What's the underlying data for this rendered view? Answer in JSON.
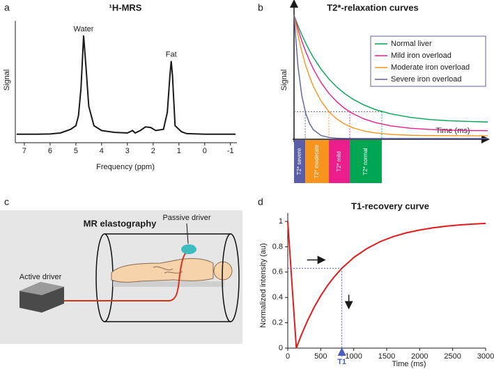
{
  "chart_data": [
    {
      "type": "line",
      "panel": "a",
      "title": "¹H-MRS",
      "x_label": "Frequency (ppm)",
      "y_label": "Signal",
      "xlim": [
        7.35,
        -1.25
      ],
      "ylim": [
        0,
        100
      ],
      "xticks": [
        7,
        6,
        5,
        4,
        3,
        2,
        1,
        0,
        -1
      ],
      "color": "#1a1a1a",
      "x": [
        7.3,
        6.5,
        6.0,
        5.6,
        5.4,
        5.2,
        5.0,
        4.9,
        4.8,
        4.7,
        4.6,
        4.5,
        4.3,
        4.0,
        3.5,
        3.0,
        2.8,
        2.7,
        2.5,
        2.3,
        2.1,
        1.9,
        1.6,
        1.45,
        1.35,
        1.3,
        1.25,
        1.15,
        1.0,
        0.9,
        0.7,
        0.0,
        -1.0,
        -1.2
      ],
      "values": [
        7,
        7,
        7.2,
        8,
        9.5,
        11,
        14,
        22,
        45,
        88,
        60,
        30,
        14,
        10,
        8.5,
        8,
        10,
        8,
        10,
        13,
        12.5,
        10,
        11,
        25,
        55,
        67,
        55,
        14,
        11,
        9,
        7.5,
        7,
        7,
        7
      ],
      "annotations": [
        {
          "text": "Water",
          "x": 4.7,
          "y": 88
        },
        {
          "text": "Fat",
          "x": 1.3,
          "y": 67
        }
      ]
    },
    {
      "type": "line",
      "panel": "b",
      "title": "T2*-relaxation curves",
      "x_label": "Time (ms)",
      "y_label": "Signal",
      "xlim": [
        0,
        100
      ],
      "ylim": [
        0,
        100
      ],
      "legend": "upper right",
      "x": [
        0,
        2,
        4,
        6,
        8,
        10,
        14,
        18,
        22,
        26,
        30,
        36,
        42,
        50,
        60,
        70,
        80,
        90,
        100
      ],
      "series": [
        {
          "name": "Normal liver",
          "color": "#00a651",
          "values": [
            90,
            82.6,
            75.9,
            69.8,
            64.3,
            59.3,
            50.8,
            43.7,
            38.0,
            33.3,
            29.4,
            24.9,
            21.5,
            18.4,
            15.9,
            14.3,
            13.4,
            12.9,
            12.5
          ]
        },
        {
          "name": "Mild iron overload",
          "color": "#ec1e8c",
          "values": [
            90,
            80.1,
            71.4,
            63.7,
            57.0,
            50.9,
            41.0,
            33.3,
            27.3,
            22.5,
            18.9,
            14.8,
            12.1,
            9.7,
            8.0,
            7.1,
            6.6,
            6.3,
            6.2
          ]
        },
        {
          "name": "Moderate iron overload",
          "color": "#f7941d",
          "values": [
            90,
            75.6,
            63.8,
            53.7,
            45.4,
            38.3,
            27.6,
            20.0,
            14.8,
            11.1,
            8.5,
            6.0,
            4.6,
            3.5,
            2.9,
            2.7,
            2.6,
            2.5,
            2.5
          ]
        },
        {
          "name": "Severe iron overload",
          "color": "#5b5ea6",
          "values": [
            90,
            53.4,
            31.7,
            19.0,
            11.4,
            6.9,
            2.7,
            1.3,
            0.8,
            0.6,
            0.5,
            0.5,
            0.5,
            0.5,
            0.5,
            0.5,
            0.5,
            0.5,
            0.5
          ]
        }
      ],
      "threshold": 20,
      "bands": [
        {
          "label": "T2* severe",
          "color": "#5b5ea6",
          "from": 0,
          "to": 5.8
        },
        {
          "label": "T2* moderate",
          "color": "#f7941d",
          "from": 5.8,
          "to": 18
        },
        {
          "label": "T2* mild",
          "color": "#ec1e8c",
          "from": 18,
          "to": 28.8
        },
        {
          "label": "T2* normal",
          "color": "#00a651",
          "from": 28.8,
          "to": 45.3
        }
      ]
    },
    {
      "type": "line",
      "panel": "d",
      "title": "T1-recovery curve",
      "x_label": "Time (ms)",
      "y_label": "Normalized intensity (au)",
      "xlim": [
        0,
        3000
      ],
      "ylim": [
        0,
        1
      ],
      "xticks": [
        0,
        500,
        1000,
        1500,
        2000,
        2500,
        3000
      ],
      "yticks": [
        0,
        0.2,
        0.4,
        0.6,
        0.8,
        1
      ],
      "color": "#e41a1c",
      "x": [
        0,
        130,
        200,
        300,
        400,
        500,
        600,
        700,
        820,
        1000,
        1200,
        1400,
        1600,
        1800,
        2000,
        2200,
        2400,
        2600,
        2800,
        3000
      ],
      "values": [
        1,
        0,
        0.096,
        0.217,
        0.322,
        0.413,
        0.492,
        0.56,
        0.63,
        0.715,
        0.786,
        0.84,
        0.88,
        0.91,
        0.932,
        0.949,
        0.962,
        0.972,
        0.979,
        0.984
      ],
      "annotations": [
        {
          "text": "T1",
          "x": 820,
          "y": 0.63
        }
      ]
    }
  ],
  "illustration": {
    "panel": "c",
    "title": "MR elastography",
    "labels": [
      "Passive driver",
      "Active driver"
    ]
  }
}
